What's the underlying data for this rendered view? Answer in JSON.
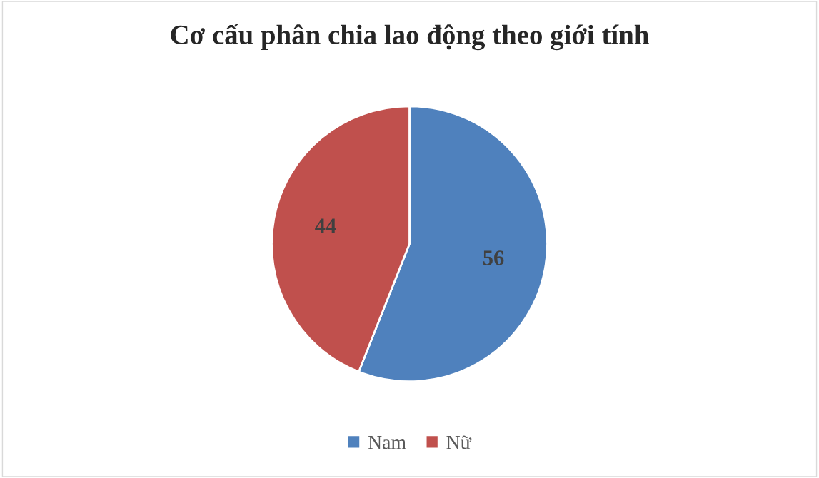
{
  "chart_data": {
    "type": "pie",
    "title": "Cơ cấu phân chia lao động theo giới tính",
    "categories": [
      "Nam",
      "Nữ"
    ],
    "values": [
      56,
      44
    ],
    "colors": [
      "#4f81bd",
      "#c0504d"
    ],
    "data_labels": true,
    "legend": "bottom"
  }
}
